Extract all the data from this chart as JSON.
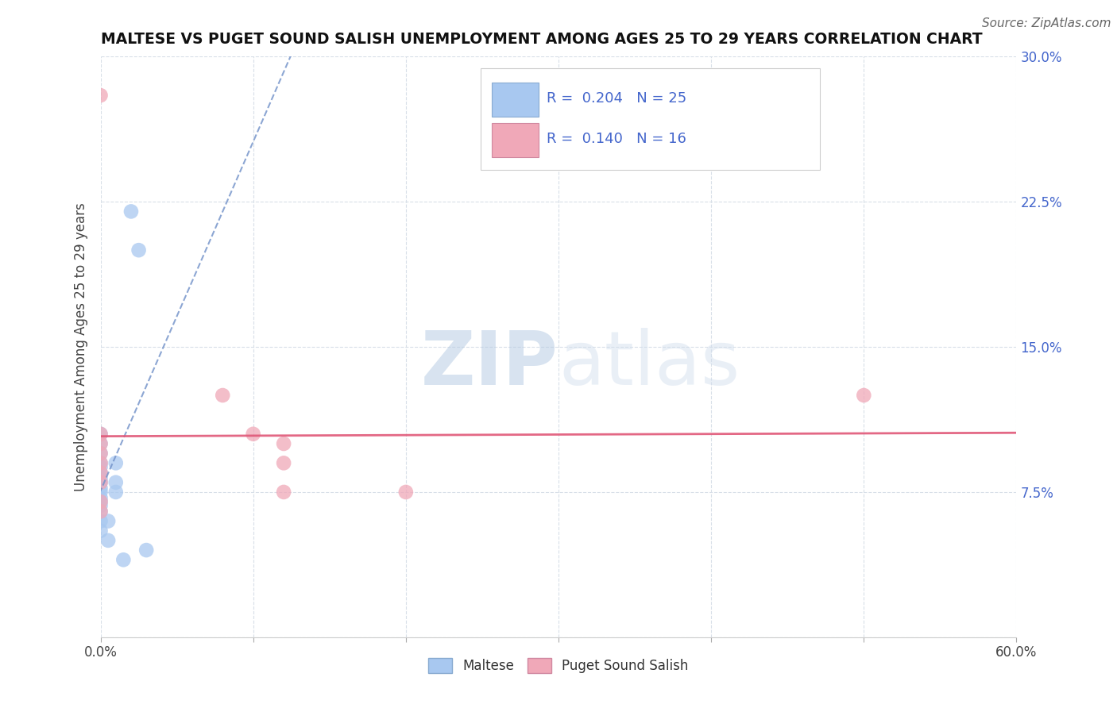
{
  "title": "MALTESE VS PUGET SOUND SALISH UNEMPLOYMENT AMONG AGES 25 TO 29 YEARS CORRELATION CHART",
  "source": "Source: ZipAtlas.com",
  "ylabel": "Unemployment Among Ages 25 to 29 years",
  "xlim": [
    0.0,
    0.6
  ],
  "ylim": [
    0.0,
    0.3
  ],
  "xticks": [
    0.0,
    0.1,
    0.2,
    0.3,
    0.4,
    0.5,
    0.6
  ],
  "yticks": [
    0.0,
    0.075,
    0.15,
    0.225,
    0.3
  ],
  "right_ytick_labels": [
    "",
    "7.5%",
    "15.0%",
    "22.5%",
    "30.0%"
  ],
  "background_color": "#ffffff",
  "grid_color": "#d8dfe8",
  "maltese_R": 0.204,
  "maltese_N": 25,
  "puget_R": 0.14,
  "puget_N": 16,
  "maltese_color": "#a8c8f0",
  "puget_color": "#f0a8b8",
  "maltese_line_color": "#7090c8",
  "puget_line_color": "#e05878",
  "legend_text_color": "#4466cc",
  "maltese_points_x": [
    0.0,
    0.0,
    0.0,
    0.0,
    0.0,
    0.0,
    0.0,
    0.0,
    0.0,
    0.0,
    0.0,
    0.0,
    0.0,
    0.0,
    0.0,
    0.0,
    0.005,
    0.005,
    0.01,
    0.01,
    0.01,
    0.015,
    0.02,
    0.025,
    0.03
  ],
  "maltese_points_y": [
    0.055,
    0.06,
    0.065,
    0.068,
    0.07,
    0.072,
    0.075,
    0.077,
    0.08,
    0.082,
    0.085,
    0.088,
    0.09,
    0.095,
    0.1,
    0.105,
    0.05,
    0.06,
    0.075,
    0.08,
    0.09,
    0.04,
    0.22,
    0.2,
    0.045
  ],
  "puget_points_x": [
    0.0,
    0.0,
    0.0,
    0.0,
    0.0,
    0.0,
    0.0,
    0.0,
    0.08,
    0.1,
    0.12,
    0.2,
    0.5,
    0.12,
    0.12,
    0.0
  ],
  "puget_points_y": [
    0.065,
    0.07,
    0.08,
    0.085,
    0.09,
    0.095,
    0.1,
    0.105,
    0.125,
    0.105,
    0.075,
    0.075,
    0.125,
    0.1,
    0.09,
    0.28
  ]
}
